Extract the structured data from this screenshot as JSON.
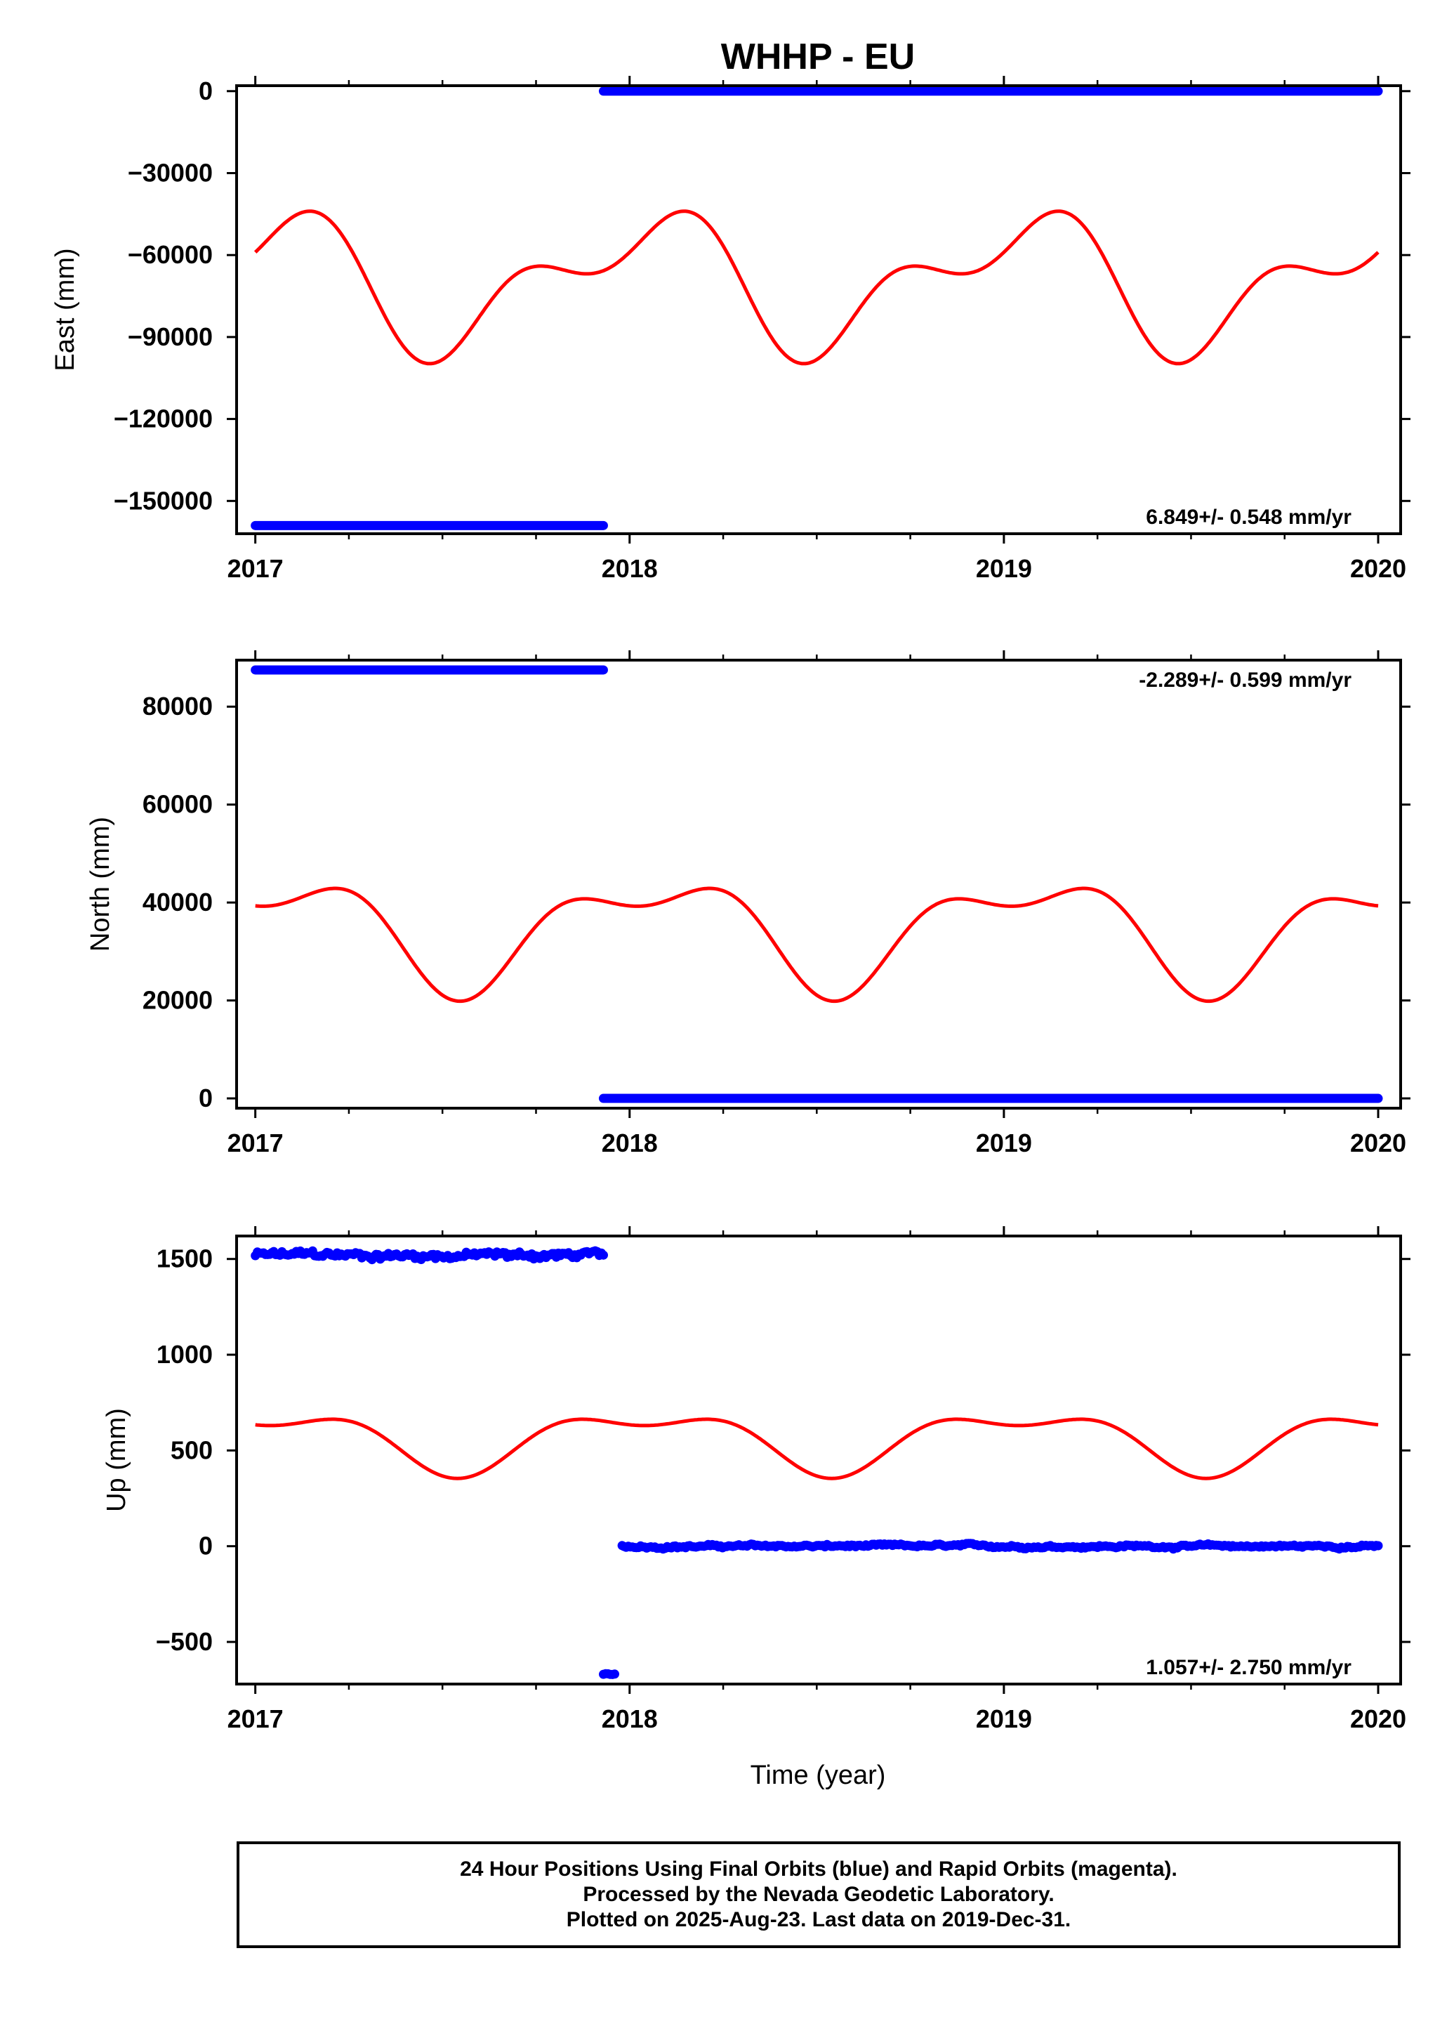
{
  "title": "WHHP - EU",
  "colors": {
    "final": "#0000ff",
    "model": "#ff0000",
    "axis": "#000000"
  },
  "chart_data": [
    {
      "type": "scatter",
      "ylabel": "East (mm)",
      "xlim": [
        2016.95,
        2020.06
      ],
      "ylim": [
        -162000,
        2000
      ],
      "x_ticks": [
        2017,
        2018,
        2019,
        2020
      ],
      "x_tick_labels": [
        "2017",
        "2018",
        "2019",
        "2020"
      ],
      "y_ticks": [
        0,
        -30000,
        -60000,
        -90000,
        -120000,
        -150000
      ],
      "y_tick_labels": [
        "0",
        "−30000",
        "−60000",
        "−90000",
        "−120000",
        "−150000"
      ],
      "rate_label": "6.849+/- 0.548 mm/yr",
      "rate_position": "bottom-right",
      "segments": [
        {
          "name": "Final Orbits",
          "x_start": 2017.0,
          "x_end": 2017.93,
          "y": -159000
        },
        {
          "name": "Final Orbits",
          "x_start": 2017.93,
          "x_end": 2020.0,
          "y": 0
        }
      ],
      "model": {
        "name": "model",
        "base": -69500,
        "a1": -20000,
        "phase1": 0.53,
        "a2": -12500,
        "phase2": 0.44
      }
    },
    {
      "type": "scatter",
      "ylabel": "North (mm)",
      "xlim": [
        2016.95,
        2020.06
      ],
      "ylim": [
        -2000,
        89500
      ],
      "x_ticks": [
        2017,
        2018,
        2019,
        2020
      ],
      "x_tick_labels": [
        "2017",
        "2018",
        "2019",
        "2020"
      ],
      "y_ticks": [
        0,
        20000,
        40000,
        60000,
        80000
      ],
      "y_tick_labels": [
        "0",
        "20000",
        "40000",
        "60000",
        "80000"
      ],
      "rate_label": "-2.289+/- 0.599 mm/yr",
      "rate_position": "top-right",
      "segments": [
        {
          "name": "Final Orbits",
          "x_start": 2017.0,
          "x_end": 2017.93,
          "y": 87500
        },
        {
          "name": "Final Orbits",
          "x_start": 2017.93,
          "x_end": 2020.0,
          "y": 0
        }
      ],
      "model": {
        "name": "model",
        "base": 34500,
        "a1": 9800,
        "phase1": 0.06,
        "a2": 4900,
        "phase2": 0.29
      }
    },
    {
      "type": "scatter",
      "ylabel": "Up (mm)",
      "xlim": [
        2016.95,
        2020.06
      ],
      "ylim": [
        -720,
        1620
      ],
      "x_ticks": [
        2017,
        2018,
        2019,
        2020
      ],
      "x_tick_labels": [
        "2017",
        "2018",
        "2019",
        "2020"
      ],
      "y_ticks": [
        1500,
        1000,
        500,
        0,
        -500
      ],
      "y_tick_labels": [
        "1500",
        "1000",
        "500",
        "0",
        "−500"
      ],
      "rate_label": "1.057+/- 2.750 mm/yr",
      "rate_position": "bottom-right",
      "segments": [
        {
          "name": "Final Orbits",
          "x_start": 2017.0,
          "x_end": 2017.93,
          "y": 1520,
          "scatter": 25
        },
        {
          "name": "Final Orbits",
          "x_start": 2017.93,
          "x_end": 2017.96,
          "y": -670,
          "scatter": 5
        },
        {
          "name": "Final Orbits",
          "x_start": 2017.98,
          "x_end": 2020.0,
          "y": 0,
          "scatter": 10
        }
      ],
      "model": {
        "name": "model",
        "base": 560,
        "a1": 138,
        "phase1": 0.04,
        "a2": 68,
        "phase2": 0.29
      }
    }
  ],
  "xlabel": "Time (year)",
  "footer_lines": [
    "24 Hour Positions Using Final Orbits (blue) and Rapid Orbits (magenta).",
    "Processed by the Nevada Geodetic Laboratory.",
    "Plotted on 2025-Aug-23. Last data on 2019-Dec-31."
  ]
}
